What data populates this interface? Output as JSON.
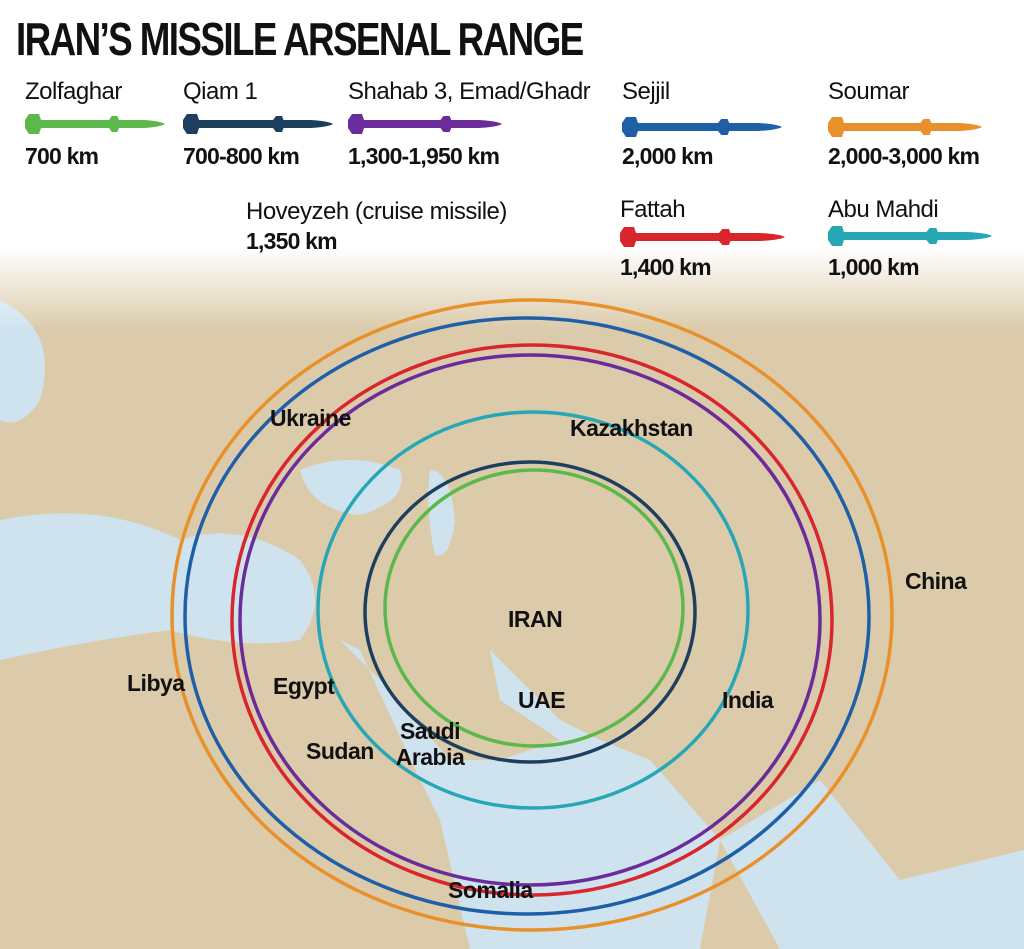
{
  "title": "IRAN’S MISSILE ARSENAL RANGE",
  "missiles": [
    {
      "name": "Zolfaghar",
      "range": "700 km",
      "color": "#5cb84a"
    },
    {
      "name": "Qiam 1",
      "range": "700-800 km",
      "color": "#1d3f5e"
    },
    {
      "name": "Shahab 3, Emad/Ghadr",
      "range": "1,300-1,950 km",
      "color": "#6a2c9a"
    },
    {
      "name": "Sejjil",
      "range": "2,000 km",
      "color": "#1e5fa8"
    },
    {
      "name": "Soumar",
      "range": "2,000-3,000 km",
      "color": "#e8912c"
    },
    {
      "name": "Hoveyzeh (cruise missile)",
      "range": "1,350 km"
    },
    {
      "name": "Fattah",
      "range": "1,400 km",
      "color": "#d9262c"
    },
    {
      "name": "Abu Mahdi",
      "range": "1,000 km",
      "color": "#27a7b5"
    }
  ],
  "labels": [
    "Ukraine",
    "Kazakhstan",
    "China",
    "IRAN",
    "Libya",
    "Egypt",
    "UAE",
    "India",
    "Saudi Arabia",
    "Sudan",
    "Somalia"
  ]
}
